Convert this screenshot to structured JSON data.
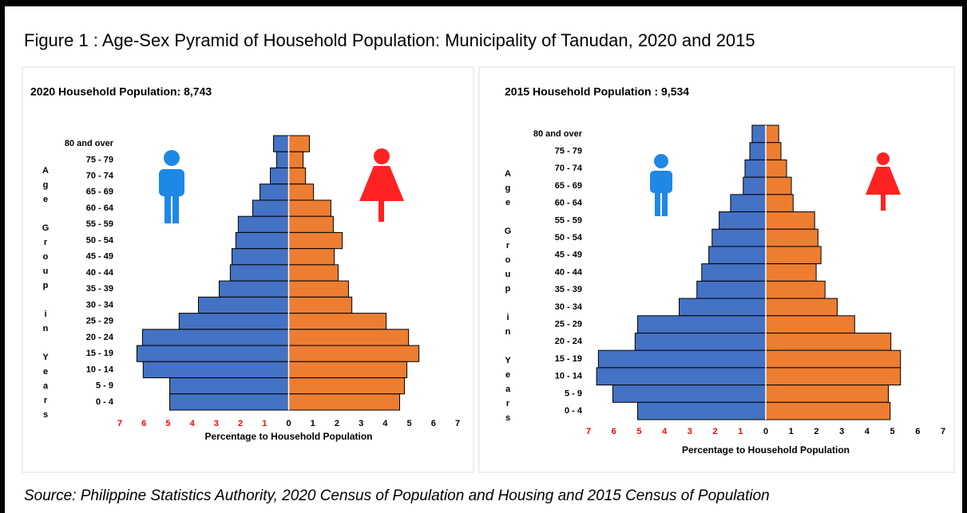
{
  "title": "Figure  1  : Age-Sex Pyramid of Household Population: Municipality of Tanudan, 2020 and 2015",
  "source": "Source: Philippine Statistics Authority, 2020 Census of Population and Housing and 2015 Census of Population",
  "chart_data": [
    {
      "type": "pyramid",
      "title": "2020 Household Population: 8,743",
      "xlabel": "Percentage to Household  Population",
      "ylabel": "Age Group in Years",
      "categories": [
        "80 and over",
        "75 - 79",
        "70 - 74",
        "65 - 69",
        "60 - 64",
        "55 - 59",
        "50 - 54",
        "45 - 49",
        "40 - 44",
        "35 - 39",
        "30 - 34",
        "25 - 29",
        "20 - 24",
        "15 - 19",
        "10 - 14",
        "5 - 9",
        "0 - 4"
      ],
      "series": [
        {
          "color": "#4472c4",
          "values": [
            -0.63,
            -0.5,
            -0.76,
            -1.19,
            -1.49,
            -2.09,
            -2.19,
            -2.35,
            -2.42,
            -2.88,
            -3.74,
            -4.54,
            -6.06,
            -6.29,
            -6.03,
            -4.93,
            -4.93
          ]
        },
        {
          "color": "#ed7d31",
          "values": [
            0.86,
            0.6,
            0.7,
            1.03,
            1.75,
            1.85,
            2.22,
            1.89,
            2.05,
            2.48,
            2.62,
            4.04,
            4.97,
            5.4,
            4.9,
            4.8,
            4.6
          ]
        }
      ],
      "xlim": [
        -7,
        7
      ],
      "xticks": [
        {
          "value": -7,
          "label": "7"
        },
        {
          "value": -6,
          "label": "6"
        },
        {
          "value": -5,
          "label": "5"
        },
        {
          "value": -4,
          "label": "4"
        },
        {
          "value": -3,
          "label": "3"
        },
        {
          "value": -2,
          "label": "2"
        },
        {
          "value": -1,
          "label": "1"
        },
        0,
        1,
        2,
        3,
        4,
        5,
        6,
        7
      ],
      "negative_tick_color": "#ff0000"
    },
    {
      "type": "pyramid",
      "title": "2015 Household Population : 9,534",
      "xlabel": "Percentage to Household Population",
      "ylabel": "Age Group in Years",
      "categories": [
        "80 and over",
        "75 - 79",
        "70 - 74",
        "65 - 69",
        "60 - 64",
        "55 - 59",
        "50 - 54",
        "45 - 49",
        "40 - 44",
        "35 - 39",
        "30 - 34",
        "25 - 29",
        "20 - 24",
        "15 - 19",
        "10 - 14",
        "5 - 9",
        "0 - 4"
      ],
      "series": [
        {
          "color": "#4472c4",
          "values": [
            -0.54,
            -0.63,
            -0.82,
            -0.89,
            -1.39,
            -1.84,
            -2.12,
            -2.25,
            -2.53,
            -2.72,
            -3.42,
            -5.06,
            -5.16,
            -6.61,
            -6.68,
            -6.04,
            -5.06
          ]
        },
        {
          "color": "#ed7d31",
          "values": [
            0.51,
            0.6,
            0.82,
            1.01,
            1.08,
            1.93,
            2.06,
            2.18,
            1.99,
            2.34,
            2.82,
            3.51,
            4.94,
            5.32,
            5.32,
            4.84,
            4.91
          ]
        }
      ],
      "xlim": [
        -7,
        7
      ],
      "xticks": [
        {
          "value": -7,
          "label": "7"
        },
        {
          "value": -6,
          "label": "6"
        },
        {
          "value": -5,
          "label": "5"
        },
        {
          "value": -4,
          "label": "4"
        },
        {
          "value": -3,
          "label": "3"
        },
        {
          "value": -2,
          "label": "2"
        },
        {
          "value": -1,
          "label": "1"
        },
        0,
        1,
        2,
        3,
        4,
        5,
        6,
        7
      ],
      "negative_tick_color": "#ff0000"
    }
  ]
}
